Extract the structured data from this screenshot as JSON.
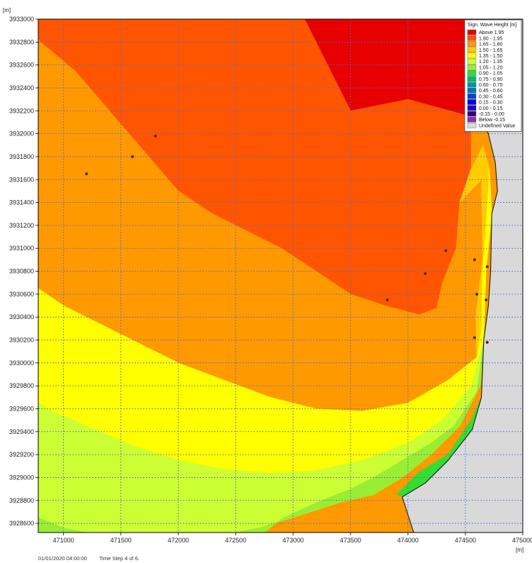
{
  "chart_data": {
    "type": "heatmap",
    "subtype": "map-contour",
    "x_unit": "[m]",
    "y_unit": "[m]",
    "xlim": [
      470780,
      475000
    ],
    "ylim": [
      3928520,
      3933000
    ],
    "x_ticks": [
      471000,
      471500,
      472000,
      472500,
      473000,
      473500,
      474000,
      474500,
      475000
    ],
    "y_ticks": [
      3928600,
      3928800,
      3929000,
      3929200,
      3929400,
      3929600,
      3929800,
      3930000,
      3930200,
      3930400,
      3930600,
      3930800,
      3931000,
      3931200,
      3931400,
      3931600,
      3931800,
      3932000,
      3932200,
      3932400,
      3932600,
      3932800,
      3933000
    ],
    "grid": true,
    "legend_position": "top-right",
    "legend": {
      "title": "Sign. Wave Height [m]",
      "entries": [
        {
          "label": "Above  1.95",
          "color": "#e60000"
        },
        {
          "label": "1.80 -  1.95",
          "color": "#ff5500"
        },
        {
          "label": "1.65 -  1.80",
          "color": "#ff9900"
        },
        {
          "label": "1.50 -  1.65",
          "color": "#ffcc00"
        },
        {
          "label": "1.35 -  1.50",
          "color": "#ffff00"
        },
        {
          "label": "1.20 -  1.35",
          "color": "#ccff33"
        },
        {
          "label": "1.05 -  1.20",
          "color": "#99ee33"
        },
        {
          "label": "0.90 -  1.05",
          "color": "#33dd33"
        },
        {
          "label": "0.75 -  0.90",
          "color": "#00bb66"
        },
        {
          "label": "0.60 -  0.75",
          "color": "#009999"
        },
        {
          "label": "0.45 -  0.60",
          "color": "#0077bb"
        },
        {
          "label": "0.30 -  0.45",
          "color": "#0044cc"
        },
        {
          "label": "0.15 -  0.30",
          "color": "#0000dd"
        },
        {
          "label": "0.00 -  0.15",
          "color": "#2200bb"
        },
        {
          "label": "-0.15 -  0.00",
          "color": "#330088"
        },
        {
          "label": "Below -0.15",
          "color": "#8833aa"
        },
        {
          "label": "Undefined Value",
          "color": "#d9d9d9"
        }
      ]
    },
    "regions": [
      {
        "band": "Above  1.95",
        "color": "#e60000",
        "polygon": [
          [
            473100,
            3933000
          ],
          [
            474550,
            3933000
          ],
          [
            474550,
            3932150
          ],
          [
            474000,
            3932300
          ],
          [
            473500,
            3932200
          ],
          [
            473300,
            3932600
          ]
        ]
      },
      {
        "band": "1.80 -  1.95",
        "color": "#ff5500",
        "polygon": [
          [
            470780,
            3933000
          ],
          [
            473100,
            3933000
          ],
          [
            473300,
            3932600
          ],
          [
            473500,
            3932200
          ],
          [
            474000,
            3932300
          ],
          [
            474550,
            3932150
          ],
          [
            474550,
            3931700
          ],
          [
            474450,
            3931400
          ],
          [
            474420,
            3931000
          ],
          [
            474300,
            3930700
          ],
          [
            474250,
            3930480
          ],
          [
            474100,
            3930420
          ],
          [
            473800,
            3930500
          ],
          [
            473500,
            3930600
          ],
          [
            473200,
            3930800
          ],
          [
            472900,
            3931000
          ],
          [
            472600,
            3931150
          ],
          [
            472300,
            3931300
          ],
          [
            472000,
            3931500
          ],
          [
            471700,
            3931850
          ],
          [
            471400,
            3932200
          ],
          [
            471100,
            3932550
          ],
          [
            470800,
            3932800
          ],
          [
            470780,
            3932830
          ]
        ]
      },
      {
        "band": "1.65 -  1.80",
        "color": "#ff9900",
        "polygon": [
          [
            470780,
            3932830
          ],
          [
            470800,
            3932800
          ],
          [
            471100,
            3932550
          ],
          [
            471400,
            3932200
          ],
          [
            471700,
            3931850
          ],
          [
            472000,
            3931500
          ],
          [
            472300,
            3931300
          ],
          [
            472600,
            3931150
          ],
          [
            472900,
            3931000
          ],
          [
            473200,
            3930800
          ],
          [
            473500,
            3930600
          ],
          [
            473800,
            3930500
          ],
          [
            474100,
            3930420
          ],
          [
            474250,
            3930480
          ],
          [
            474300,
            3930700
          ],
          [
            474420,
            3931000
          ],
          [
            474450,
            3931400
          ],
          [
            474550,
            3931700
          ],
          [
            474640,
            3931600
          ],
          [
            474650,
            3930900
          ],
          [
            474590,
            3930400
          ],
          [
            474600,
            3930050
          ],
          [
            474350,
            3929850
          ],
          [
            474000,
            3929650
          ],
          [
            473600,
            3929580
          ],
          [
            473200,
            3929600
          ],
          [
            472800,
            3929700
          ],
          [
            472400,
            3929850
          ],
          [
            472000,
            3930000
          ],
          [
            471600,
            3930200
          ],
          [
            471300,
            3930350
          ],
          [
            471000,
            3930500
          ],
          [
            470780,
            3930650
          ]
        ]
      },
      {
        "band": "1.50 -  1.65",
        "color": "#ffcc00",
        "polygon": [
          [
            474450,
            3931400
          ],
          [
            474550,
            3931700
          ],
          [
            474650,
            3931900
          ],
          [
            474710,
            3931700
          ],
          [
            474680,
            3931200
          ],
          [
            474650,
            3930800
          ],
          [
            474640,
            3930300
          ],
          [
            474600,
            3930050
          ],
          [
            474590,
            3930400
          ],
          [
            474650,
            3930900
          ],
          [
            474640,
            3931600
          ]
        ]
      },
      {
        "band": "1.35 -  1.50",
        "color": "#ffff00",
        "polygon": [
          [
            470780,
            3930650
          ],
          [
            471000,
            3930500
          ],
          [
            471300,
            3930350
          ],
          [
            471600,
            3930200
          ],
          [
            472000,
            3930000
          ],
          [
            472400,
            3929850
          ],
          [
            472800,
            3929700
          ],
          [
            473200,
            3929600
          ],
          [
            473600,
            3929580
          ],
          [
            474000,
            3929650
          ],
          [
            474350,
            3929850
          ],
          [
            474600,
            3930050
          ],
          [
            474640,
            3930300
          ],
          [
            474650,
            3930800
          ],
          [
            474680,
            3931200
          ],
          [
            474710,
            3931700
          ],
          [
            474730,
            3931300
          ],
          [
            474680,
            3930800
          ],
          [
            474660,
            3930200
          ],
          [
            474550,
            3929800
          ],
          [
            474300,
            3929500
          ],
          [
            474000,
            3929300
          ],
          [
            473600,
            3929150
          ],
          [
            473200,
            3929060
          ],
          [
            472800,
            3929040
          ],
          [
            472400,
            3929070
          ],
          [
            472000,
            3929150
          ],
          [
            471600,
            3929280
          ],
          [
            471200,
            3929450
          ],
          [
            470900,
            3929580
          ],
          [
            470780,
            3929650
          ]
        ]
      },
      {
        "band": "1.20 -  1.35",
        "color": "#ccff33",
        "polygon": [
          [
            470780,
            3929650
          ],
          [
            470900,
            3929580
          ],
          [
            471200,
            3929450
          ],
          [
            471600,
            3929280
          ],
          [
            472000,
            3929150
          ],
          [
            472400,
            3929070
          ],
          [
            472800,
            3929040
          ],
          [
            473200,
            3929060
          ],
          [
            473600,
            3929150
          ],
          [
            474000,
            3929300
          ],
          [
            474300,
            3929500
          ],
          [
            474550,
            3929800
          ],
          [
            474660,
            3930200
          ],
          [
            474630,
            3929800
          ],
          [
            474450,
            3929450
          ],
          [
            474200,
            3929200
          ],
          [
            473950,
            3929000
          ],
          [
            473700,
            3928850
          ],
          [
            473400,
            3928780
          ],
          [
            473000,
            3928650
          ],
          [
            472700,
            3928560
          ],
          [
            472500,
            3928520
          ],
          [
            471200,
            3928520
          ],
          [
            471000,
            3928560
          ],
          [
            470780,
            3928650
          ]
        ]
      },
      {
        "band": "1.05 -  1.20",
        "color": "#99ee33",
        "polygon": [
          [
            470780,
            3928650
          ],
          [
            471000,
            3928560
          ],
          [
            471200,
            3928520
          ],
          [
            470780,
            3928520
          ]
        ]
      },
      {
        "band": "1.05 -  1.20",
        "color": "#99ee33",
        "polygon": [
          [
            472500,
            3928520
          ],
          [
            472700,
            3928560
          ],
          [
            473000,
            3928650
          ],
          [
            473400,
            3928780
          ],
          [
            473700,
            3928850
          ],
          [
            473950,
            3929000
          ],
          [
            474200,
            3929200
          ],
          [
            474450,
            3929450
          ],
          [
            474630,
            3929800
          ],
          [
            474660,
            3930200
          ],
          [
            474600,
            3929750
          ],
          [
            474400,
            3929450
          ],
          [
            474200,
            3929300
          ],
          [
            473950,
            3929150
          ],
          [
            473700,
            3929000
          ],
          [
            473500,
            3928900
          ],
          [
            473200,
            3928780
          ],
          [
            472900,
            3928640
          ],
          [
            472750,
            3928520
          ]
        ]
      },
      {
        "band": "0.90 -  1.05",
        "color": "#33dd33",
        "polygon": [
          [
            473900,
            3928850
          ],
          [
            474100,
            3929050
          ],
          [
            474350,
            3929200
          ],
          [
            474550,
            3929500
          ],
          [
            474640,
            3929700
          ],
          [
            474560,
            3929420
          ],
          [
            474350,
            3929150
          ],
          [
            474150,
            3928950
          ],
          [
            474000,
            3928830
          ]
        ]
      },
      {
        "band": "Undefined Value",
        "color": "#d9d9d9",
        "polygon": [
          [
            474550,
            3933000
          ],
          [
            475000,
            3933000
          ],
          [
            475000,
            3928520
          ],
          [
            474050,
            3928520
          ],
          [
            473950,
            3928830
          ],
          [
            474150,
            3928950
          ],
          [
            474350,
            3929150
          ],
          [
            474560,
            3929420
          ],
          [
            474640,
            3929700
          ],
          [
            474660,
            3930200
          ],
          [
            474700,
            3930500
          ],
          [
            474720,
            3930800
          ],
          [
            474730,
            3931300
          ],
          [
            474780,
            3931500
          ],
          [
            474760,
            3931750
          ],
          [
            474700,
            3932000
          ],
          [
            474640,
            3932150
          ],
          [
            474600,
            3932250
          ],
          [
            474550,
            3932350
          ]
        ]
      },
      {
        "band": "1.65 -  1.80",
        "color": "#ff9900",
        "polygon": [
          [
            474550,
            3932150
          ],
          [
            474600,
            3932250
          ],
          [
            474640,
            3932150
          ],
          [
            474700,
            3932000
          ],
          [
            474650,
            3931900
          ],
          [
            474550,
            3931700
          ]
        ]
      }
    ],
    "coastline": [
      [
        474050,
        3928520
      ],
      [
        473950,
        3928830
      ],
      [
        474150,
        3928950
      ],
      [
        474350,
        3929150
      ],
      [
        474560,
        3929420
      ],
      [
        474640,
        3929700
      ],
      [
        474660,
        3930200
      ],
      [
        474700,
        3930500
      ],
      [
        474720,
        3930800
      ],
      [
        474730,
        3931300
      ],
      [
        474780,
        3931500
      ],
      [
        474760,
        3931750
      ],
      [
        474700,
        3932000
      ],
      [
        474640,
        3932150
      ],
      [
        474600,
        3932250
      ],
      [
        474550,
        3932350
      ]
    ],
    "observation_points": [
      [
        471200,
        3931650
      ],
      [
        471600,
        3931800
      ],
      [
        471800,
        3931980
      ],
      [
        473820,
        3930550
      ],
      [
        474150,
        3930780
      ],
      [
        474330,
        3930980
      ],
      [
        474580,
        3930900
      ],
      [
        474690,
        3930840
      ],
      [
        474600,
        3930600
      ],
      [
        474680,
        3930550
      ],
      [
        474580,
        3930220
      ],
      [
        474690,
        3930180
      ]
    ]
  },
  "footer": {
    "timestamp": "01/01/2020 04:00:00",
    "time_step": "Time Step 4 of 6."
  },
  "colors": {
    "grid": "#4a6fd1",
    "frame": "#000000",
    "point": "#5a2a00"
  }
}
